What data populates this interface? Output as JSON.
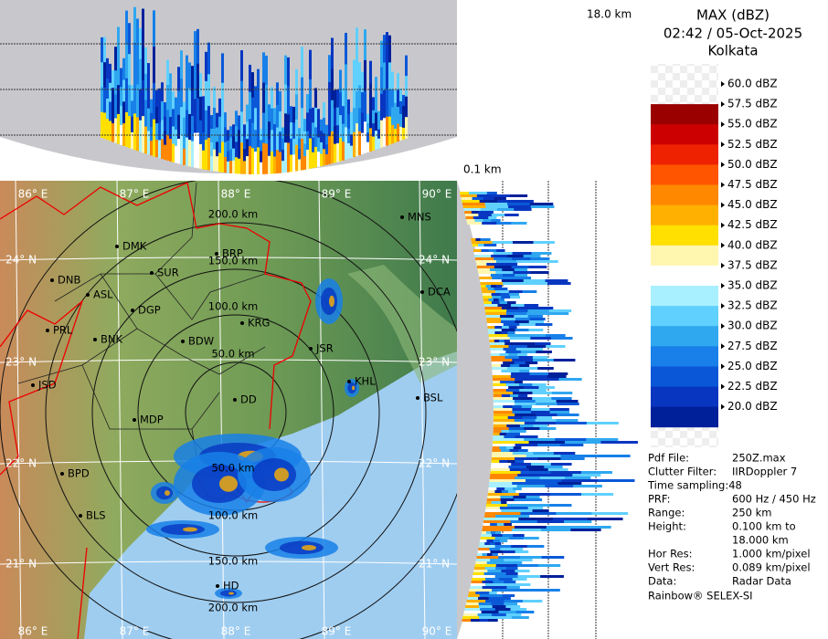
{
  "header": {
    "title": "MAX (dBZ)",
    "time": "02:42 / 05-Oct-2025",
    "site": "Kolkata"
  },
  "panels": {
    "top_height": "18.0 km",
    "bottom_height": "0.1 km"
  },
  "legend": {
    "entries": [
      "60.0 dBZ",
      "57.5 dBZ",
      "55.0 dBZ",
      "52.5 dBZ",
      "50.0 dBZ",
      "47.5 dBZ",
      "45.0 dBZ",
      "42.5 dBZ",
      "40.0 dBZ",
      "37.5 dBZ",
      "35.0 dBZ",
      "32.5 dBZ",
      "30.0 dBZ",
      "27.5 dBZ",
      "25.0 dBZ",
      "22.5 dBZ",
      "20.0 dBZ"
    ],
    "colors": [
      "#9a0000",
      "#cc0000",
      "#ee2200",
      "#ff5500",
      "#ff8800",
      "#ffb000",
      "#ffe000",
      "#fff6b0",
      "#ffffff",
      "#a8f0ff",
      "#60d0ff",
      "#30a8f0",
      "#1880e8",
      "#0a58d8",
      "#0836c0",
      "#00209a"
    ]
  },
  "map": {
    "longitudes": [
      "86° E",
      "87° E",
      "88° E",
      "89° E",
      "90° E"
    ],
    "latitudes": [
      "24° N",
      "23° N",
      "22° N",
      "21° N"
    ],
    "rings": [
      "50.0 km",
      "100.0 km",
      "150.0 km",
      "200.0 km"
    ],
    "cities": [
      "MNS",
      "DMK",
      "BRP",
      "DNB",
      "SUR",
      "ASL",
      "DGP",
      "DCA",
      "PRL",
      "KRG",
      "BNK",
      "BDW",
      "JSR",
      "KHL",
      "JSD",
      "DD",
      "BSL",
      "MDP",
      "BPD",
      "BLS",
      "HD"
    ]
  },
  "info": {
    "rows": [
      {
        "label": "Pdf File:",
        "value": "250Z.max"
      },
      {
        "label": "Clutter Filter:",
        "value": "IIRDoppler 7"
      },
      {
        "label": "Time sampling:48"
      },
      {
        "label": "PRF:",
        "value": "600 Hz / 450 Hz"
      },
      {
        "label": "Range:",
        "value": "250 km"
      },
      {
        "label": "Height:",
        "value": "0.100 km to"
      },
      {
        "label": "",
        "value": "18.000 km"
      },
      {
        "label": "Hor Res:",
        "value": "1.000 km/pixel"
      },
      {
        "label": "Vert Res:",
        "value": "0.089 km/pixel"
      },
      {
        "label": "Data:",
        "value": "Radar Data"
      }
    ],
    "footer": "Rainbow® SELEX-SI"
  }
}
